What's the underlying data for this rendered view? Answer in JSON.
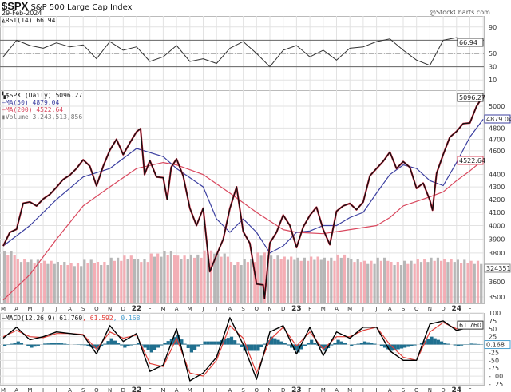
{
  "header": {
    "symbol": "$SPX",
    "name": "S&P 500 Large Cap Index",
    "date": "29-Feb-2024",
    "brand": "@StockCharts.com"
  },
  "legend": {
    "rsi": "RSI(14) 66.94",
    "price": "$SPX (Daily) 5096.27",
    "ma50": "MA(50) 4879.04",
    "ma200": "MA(200) 4522.64",
    "volume": "Volume 3,243,513,856",
    "macd_prefix": "MACD(12,26,9) 61.760",
    "macd_signal": ", 61.592",
    "macd_hist": ", 0.168"
  },
  "colors": {
    "price": "#111111",
    "price_down": "#d0213a",
    "ma50": "#3b3fa0",
    "ma200": "#d9485e",
    "macd": "#000000",
    "signal": "#e0403a",
    "histogram": "#1f6f8f",
    "volume_up": "#aaaaaa",
    "volume_down": "#f2a0a8",
    "grid": "#e2e2e2"
  },
  "chart_data": [
    {
      "type": "line",
      "panel": "RSI",
      "ylim": [
        0,
        100
      ],
      "ticks": [
        "90",
        "50",
        "30",
        "10"
      ],
      "tick_values": [
        90,
        50,
        30,
        10
      ],
      "reference_lines": [
        70,
        50,
        30
      ],
      "last_value_label": "66.94",
      "x_months_from": "2021-03",
      "series": [
        {
          "name": "RSI(14)",
          "values": [
            45,
            70,
            62,
            58,
            66,
            60,
            63,
            42,
            68,
            55,
            60,
            38,
            45,
            62,
            38,
            42,
            35,
            58,
            68,
            50,
            30,
            55,
            62,
            45,
            55,
            40,
            58,
            60,
            68,
            72,
            55,
            40,
            32,
            70,
            74,
            68,
            66.94
          ]
        }
      ]
    },
    {
      "type": "line",
      "panel": "Price",
      "scale": "log",
      "ylim": [
        3470,
        5150
      ],
      "ticks": [
        "5000",
        "4800",
        "4700",
        "4600",
        "4400",
        "4300",
        "4200",
        "4100",
        "4000",
        "3900",
        "3800",
        "3600",
        "3500"
      ],
      "tick_values": [
        5000,
        4800,
        4700,
        4600,
        4400,
        4300,
        4200,
        4100,
        4000,
        3900,
        3800,
        3600,
        3500
      ],
      "value_labels": {
        "price": "5096.27",
        "ma50": "4879.04",
        "ma200": "4522.64",
        "volume": "3243513"
      },
      "price": {
        "t": [
          0,
          0.5,
          1,
          1.5,
          2,
          2.5,
          3,
          3.5,
          4,
          4.5,
          5,
          5.5,
          6,
          6.5,
          7,
          7.5,
          8,
          8.5,
          9,
          9.5,
          10,
          10.3,
          10.6,
          11,
          11.5,
          12,
          12.3,
          12.6,
          13,
          13.5,
          14,
          14.5,
          15,
          15.5,
          16,
          16.5,
          17,
          17.5,
          18,
          18.5,
          19,
          19.5,
          19.6,
          20,
          20.5,
          21,
          21.5,
          22,
          22.5,
          23,
          23.5,
          24,
          24.5,
          25,
          25.5,
          26,
          26.5,
          27,
          27.5,
          28,
          28.5,
          29,
          29.5,
          30,
          30.5,
          31,
          31.5,
          32,
          32.2,
          32.5,
          33,
          33.5,
          34,
          34.5,
          35,
          35.5,
          36
        ],
        "values": [
          3850,
          3950,
          3973,
          4170,
          4181,
          4150,
          4204,
          4240,
          4297,
          4360,
          4395,
          4450,
          4523,
          4470,
          4308,
          4470,
          4605,
          4700,
          4567,
          4670,
          4766,
          4795,
          4400,
          4516,
          4380,
          4374,
          4200,
          4460,
          4530,
          4390,
          4132,
          4000,
          4132,
          3670,
          3785,
          3900,
          4130,
          4300,
          3955,
          3870,
          3586,
          3580,
          3491,
          3872,
          3950,
          4080,
          4000,
          3840,
          3990,
          4077,
          4140,
          3970,
          3860,
          4109,
          4150,
          4169,
          4120,
          4180,
          4390,
          4450,
          4510,
          4589,
          4450,
          4508,
          4460,
          4288,
          4330,
          4194,
          4117,
          4410,
          4568,
          4719,
          4770,
          4840,
          4846,
          5000,
          5096.27
        ]
      },
      "ma50": {
        "t": [
          0,
          2,
          4,
          6,
          8,
          10,
          12,
          13,
          15,
          16,
          17,
          18,
          19,
          20,
          21,
          22,
          23,
          24,
          25,
          26,
          27,
          28,
          29,
          30,
          31,
          32,
          33,
          34,
          35,
          36
        ],
        "values": [
          3850,
          4000,
          4200,
          4380,
          4450,
          4620,
          4550,
          4450,
          4300,
          4050,
          3950,
          4050,
          3950,
          3800,
          3850,
          3950,
          3960,
          4000,
          4000,
          4060,
          4100,
          4250,
          4400,
          4480,
          4450,
          4350,
          4310,
          4500,
          4720,
          4879.04
        ]
      },
      "ma200": {
        "t": [
          0,
          2,
          4,
          6,
          8,
          10,
          12,
          13,
          15,
          17,
          19,
          21,
          22,
          24,
          26,
          28,
          29,
          30,
          32,
          33,
          34,
          35,
          36
        ],
        "values": [
          3480,
          3650,
          3900,
          4150,
          4300,
          4450,
          4500,
          4480,
          4400,
          4250,
          4100,
          3970,
          3950,
          3940,
          3970,
          4000,
          4060,
          4150,
          4220,
          4260,
          4350,
          4430,
          4522.64
        ]
      },
      "volume_billions": [
        5.0,
        4.3,
        4.2,
        4.1,
        4.0,
        3.9,
        4.2,
        4.0,
        4.4,
        4.6,
        4.3,
        4.8,
        5.0,
        4.6,
        4.7,
        5.1,
        4.8,
        4.0,
        4.3,
        4.9,
        4.6,
        4.5,
        4.4,
        4.5,
        4.4,
        4.7,
        4.3,
        4.1,
        4.4,
        4.0,
        4.1,
        4.3,
        4.4,
        4.3,
        4.2,
        4.1
      ],
      "x_labels": [
        "M",
        "A",
        "M",
        "J",
        "J",
        "A",
        "S",
        "O",
        "N",
        "D",
        "22",
        "F",
        "M",
        "A",
        "M",
        "J",
        "J",
        "A",
        "S",
        "O",
        "N",
        "D",
        "23",
        "F",
        "M",
        "A",
        "M",
        "J",
        "J",
        "A",
        "S",
        "O",
        "N",
        "D",
        "24",
        "F"
      ]
    },
    {
      "type": "line",
      "panel": "MACD",
      "ylim": [
        -125,
        100
      ],
      "ticks": [
        "100",
        "75",
        "50",
        "25",
        "-25",
        "-50",
        "-75",
        "-100",
        "-125"
      ],
      "tick_values": [
        100,
        75,
        50,
        25,
        -25,
        -50,
        -75,
        -100,
        -125
      ],
      "value_labels": {
        "macd": "61.760",
        "histogram": "0.168"
      },
      "series": [
        {
          "name": "MACD(12,26,9)",
          "values": [
            20,
            55,
            15,
            25,
            40,
            35,
            30,
            -30,
            60,
            10,
            35,
            -85,
            -65,
            50,
            -115,
            -90,
            -40,
            85,
            0,
            -110,
            40,
            60,
            -30,
            55,
            -35,
            40,
            20,
            55,
            55,
            -20,
            -50,
            -50,
            65,
            75,
            45,
            55,
            61.76
          ]
        },
        {
          "name": "signal",
          "values": [
            25,
            45,
            25,
            22,
            35,
            35,
            32,
            -15,
            40,
            20,
            30,
            -60,
            -70,
            20,
            -90,
            -100,
            -50,
            60,
            20,
            -90,
            15,
            55,
            -5,
            40,
            -15,
            25,
            25,
            45,
            55,
            0,
            -40,
            -50,
            40,
            70,
            50,
            52,
            61.59
          ]
        }
      ]
    }
  ]
}
